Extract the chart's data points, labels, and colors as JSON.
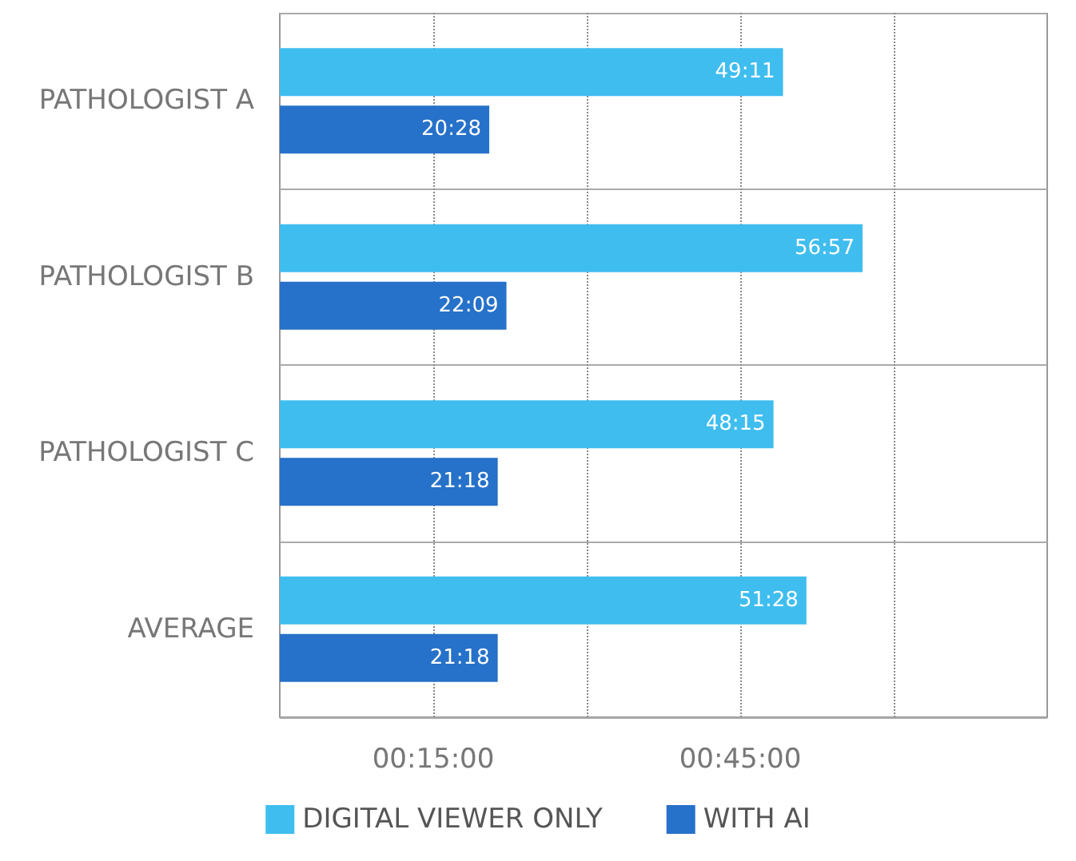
{
  "chart_data": {
    "type": "bar",
    "orientation": "horizontal",
    "categories": [
      "PATHOLOGIST A",
      "PATHOLOGIST B",
      "PATHOLOGIST C",
      "AVERAGE"
    ],
    "series": [
      {
        "name": "DIGITAL VIEWER ONLY",
        "color": "#3fbdef",
        "values": [
          49.18,
          56.95,
          48.25,
          51.47
        ],
        "value_labels": [
          "49:11",
          "56:57",
          "48:15",
          "51:28"
        ]
      },
      {
        "name": "WITH AI",
        "color": "#2671c9",
        "values": [
          20.47,
          22.15,
          21.3,
          21.3
        ],
        "value_labels": [
          "20:28",
          "22:09",
          "21:18",
          "21:18"
        ]
      }
    ],
    "xlim": [
      0,
      75
    ],
    "xticks": [
      {
        "value": 15,
        "label": "00:15:00"
      },
      {
        "value": 30,
        "label": null
      },
      {
        "value": 45,
        "label": "00:45:00"
      },
      {
        "value": 60,
        "label": null
      }
    ],
    "grid": true,
    "legend": "bottom"
  }
}
